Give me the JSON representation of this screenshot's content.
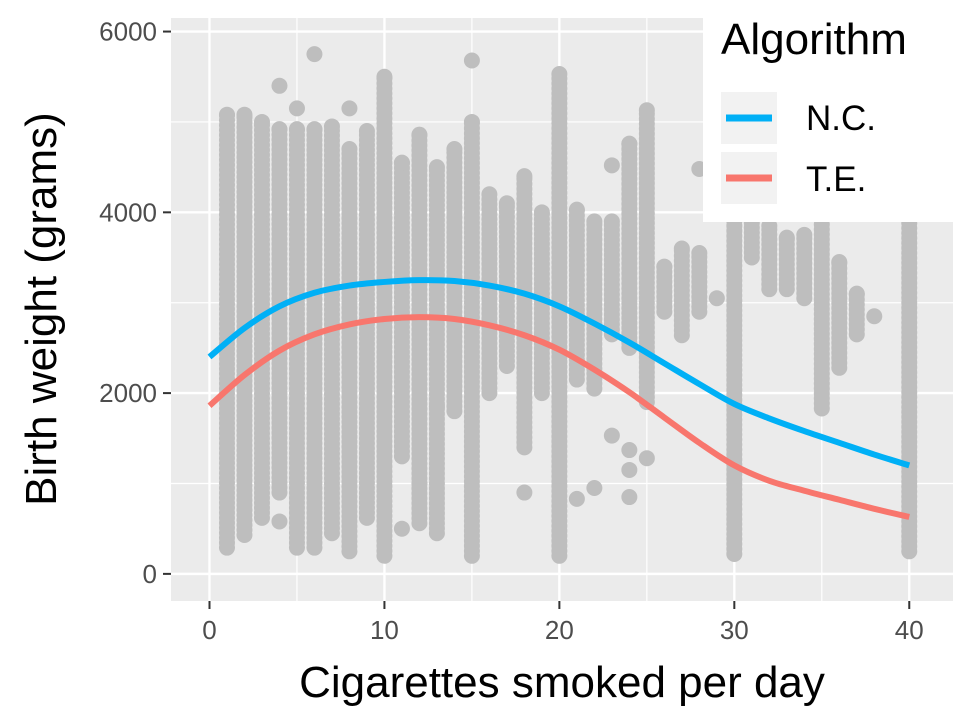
{
  "chart_data": {
    "type": "scatter",
    "xlabel": "Cigarettes smoked per day",
    "ylabel": "Birth weight (grams)",
    "xlim": [
      -2.2,
      42.5
    ],
    "ylim": [
      -300,
      6150
    ],
    "x_ticks": [
      0,
      10,
      20,
      30,
      40
    ],
    "x_tick_labels": [
      "0",
      "10",
      "20",
      "30",
      "40"
    ],
    "y_ticks": [
      0,
      2000,
      4000,
      6000
    ],
    "y_tick_labels": [
      "0",
      "2000",
      "4000",
      "6000"
    ],
    "grid": true,
    "legend": {
      "title": "Algorithm",
      "position": "top-right",
      "entries": [
        {
          "label": "N.C.",
          "color": "#00b0f6"
        },
        {
          "label": "T.E.",
          "color": "#f8766d"
        }
      ]
    },
    "point_color": "#bebebe",
    "panel_color": "#ebebeb",
    "point_columns": [
      {
        "x": 1,
        "ymin": 290,
        "ymax": 5080,
        "outliers": []
      },
      {
        "x": 2,
        "ymin": 430,
        "ymax": 5080,
        "outliers": []
      },
      {
        "x": 3,
        "ymin": 620,
        "ymax": 5000,
        "outliers": []
      },
      {
        "x": 4,
        "ymin": 900,
        "ymax": 4920,
        "outliers": [
          580,
          5400
        ]
      },
      {
        "x": 5,
        "ymin": 290,
        "ymax": 4920,
        "outliers": [
          5150
        ]
      },
      {
        "x": 6,
        "ymin": 290,
        "ymax": 4920,
        "outliers": [
          5750
        ]
      },
      {
        "x": 7,
        "ymin": 450,
        "ymax": 4950,
        "outliers": []
      },
      {
        "x": 8,
        "ymin": 250,
        "ymax": 4700,
        "outliers": [
          5150
        ]
      },
      {
        "x": 9,
        "ymin": 620,
        "ymax": 4900,
        "outliers": []
      },
      {
        "x": 10,
        "ymin": 200,
        "ymax": 5500,
        "outliers": []
      },
      {
        "x": 11,
        "ymin": 1300,
        "ymax": 4550,
        "outliers": [
          500
        ]
      },
      {
        "x": 12,
        "ymin": 560,
        "ymax": 4860,
        "outliers": [
          1000
        ]
      },
      {
        "x": 13,
        "ymin": 450,
        "ymax": 4500,
        "outliers": [
          1850
        ]
      },
      {
        "x": 14,
        "ymin": 1800,
        "ymax": 4700,
        "outliers": []
      },
      {
        "x": 15,
        "ymin": 200,
        "ymax": 5000,
        "outliers": [
          5680
        ]
      },
      {
        "x": 16,
        "ymin": 2000,
        "ymax": 4200,
        "outliers": []
      },
      {
        "x": 17,
        "ymin": 2300,
        "ymax": 4100,
        "outliers": []
      },
      {
        "x": 18,
        "ymin": 1400,
        "ymax": 4400,
        "outliers": [
          900
        ]
      },
      {
        "x": 19,
        "ymin": 2000,
        "ymax": 4000,
        "outliers": []
      },
      {
        "x": 20,
        "ymin": 200,
        "ymax": 5530,
        "outliers": []
      },
      {
        "x": 21,
        "ymin": 2150,
        "ymax": 4030,
        "outliers": [
          830
        ]
      },
      {
        "x": 22,
        "ymin": 2050,
        "ymax": 3900,
        "outliers": [
          950
        ]
      },
      {
        "x": 23,
        "ymin": 2650,
        "ymax": 3900,
        "outliers": [
          1530,
          4520
        ]
      },
      {
        "x": 24,
        "ymin": 2500,
        "ymax": 4760,
        "outliers": [
          850,
          1150,
          1370
        ]
      },
      {
        "x": 25,
        "ymin": 1900,
        "ymax": 5130,
        "outliers": [
          1280
        ]
      },
      {
        "x": 26,
        "ymin": 2900,
        "ymax": 3400,
        "outliers": []
      },
      {
        "x": 27,
        "ymin": 2640,
        "ymax": 3600,
        "outliers": []
      },
      {
        "x": 28,
        "ymin": 2900,
        "ymax": 3550,
        "outliers": [
          4480
        ]
      },
      {
        "x": 29,
        "ymin": 3050,
        "ymax": 3050,
        "outliers": []
      },
      {
        "x": 30,
        "ymin": 220,
        "ymax": 4000,
        "outliers": []
      },
      {
        "x": 31,
        "ymin": 3500,
        "ymax": 3960,
        "outliers": []
      },
      {
        "x": 32,
        "ymin": 3150,
        "ymax": 3850,
        "outliers": []
      },
      {
        "x": 33,
        "ymin": 3150,
        "ymax": 3720,
        "outliers": []
      },
      {
        "x": 34,
        "ymin": 3050,
        "ymax": 3750,
        "outliers": []
      },
      {
        "x": 35,
        "ymin": 1830,
        "ymax": 3950,
        "outliers": []
      },
      {
        "x": 36,
        "ymin": 2280,
        "ymax": 3450,
        "outliers": []
      },
      {
        "x": 37,
        "ymin": 2650,
        "ymax": 3100,
        "outliers": []
      },
      {
        "x": 38,
        "ymin": 2850,
        "ymax": 2850,
        "outliers": []
      },
      {
        "x": 40,
        "ymin": 250,
        "ymax": 4000,
        "outliers": []
      }
    ],
    "series": [
      {
        "name": "N.C.",
        "color": "#00b0f6",
        "x": [
          0,
          2,
          4,
          6,
          8,
          10,
          12,
          14,
          16,
          18,
          20,
          22,
          24,
          26,
          28,
          30,
          32,
          34,
          36,
          38,
          40
        ],
        "values": [
          2400,
          2720,
          2960,
          3110,
          3190,
          3230,
          3250,
          3240,
          3190,
          3100,
          2960,
          2770,
          2560,
          2330,
          2100,
          1880,
          1720,
          1580,
          1450,
          1320,
          1200
        ]
      },
      {
        "name": "T.E.",
        "color": "#f8766d",
        "x": [
          0,
          2,
          4,
          6,
          8,
          10,
          12,
          14,
          16,
          18,
          20,
          22,
          24,
          26,
          28,
          30,
          32,
          34,
          36,
          38,
          40
        ],
        "values": [
          1860,
          2200,
          2470,
          2650,
          2760,
          2820,
          2840,
          2820,
          2750,
          2640,
          2480,
          2260,
          2010,
          1730,
          1450,
          1200,
          1030,
          920,
          820,
          720,
          630
        ]
      }
    ]
  }
}
